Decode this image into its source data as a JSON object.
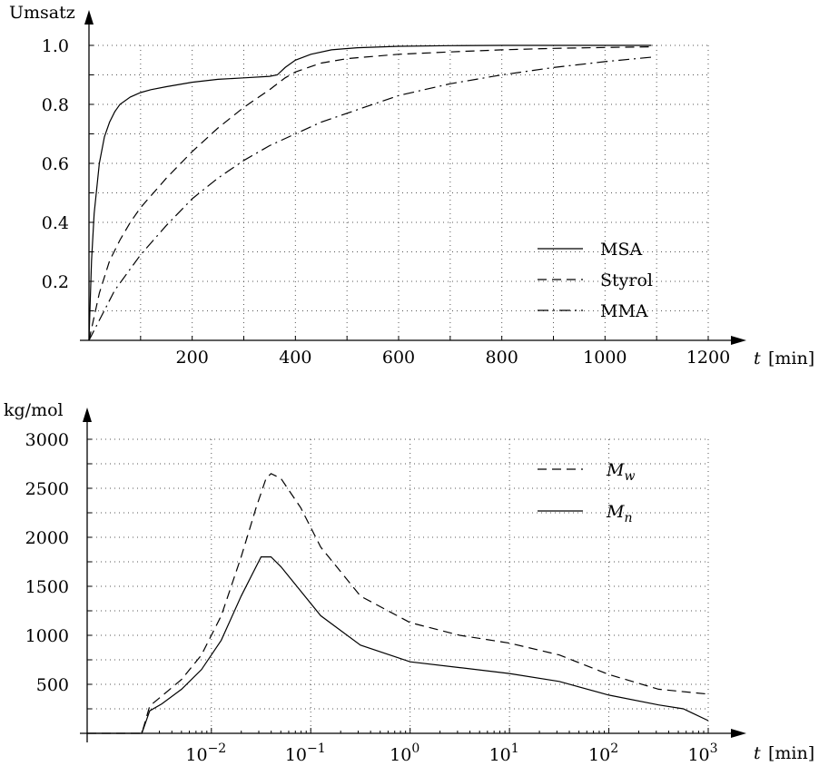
{
  "chart_data": [
    {
      "type": "line",
      "ylabel": "Umsatz",
      "xlabel_symbol": "t",
      "xlabel_unit": "[min]",
      "xlim": [
        0,
        1200
      ],
      "ylim": [
        0,
        1.0
      ],
      "xticks": [
        200,
        400,
        600,
        800,
        1000,
        1200
      ],
      "xtick_labels": [
        "200",
        "400",
        "600",
        "800",
        "1000",
        "1200"
      ],
      "yticks": [
        0.2,
        0.4,
        0.6,
        0.8,
        1.0
      ],
      "ytick_labels": [
        "0.2",
        "0.4",
        "0.6",
        "0.8",
        "1.0"
      ],
      "grid": true,
      "legend_position": "lower-right",
      "series": [
        {
          "name": "MSA",
          "style": "solid",
          "x": [
            0,
            5,
            10,
            20,
            30,
            40,
            50,
            60,
            80,
            100,
            120,
            150,
            200,
            250,
            300,
            350,
            365,
            380,
            400,
            430,
            470,
            520,
            600,
            700,
            800,
            900,
            1000,
            1090
          ],
          "y": [
            0.0,
            0.27,
            0.43,
            0.6,
            0.69,
            0.74,
            0.775,
            0.8,
            0.825,
            0.84,
            0.85,
            0.86,
            0.875,
            0.885,
            0.89,
            0.895,
            0.9,
            0.925,
            0.95,
            0.97,
            0.985,
            0.992,
            0.997,
            0.999,
            1.0,
            1.0,
            1.0,
            1.0
          ]
        },
        {
          "name": "Styrol",
          "style": "dashed",
          "x": [
            0,
            20,
            40,
            60,
            80,
            100,
            150,
            200,
            250,
            300,
            350,
            380,
            400,
            450,
            500,
            600,
            700,
            800,
            900,
            1000,
            1090
          ],
          "y": [
            0.0,
            0.16,
            0.27,
            0.34,
            0.4,
            0.45,
            0.55,
            0.64,
            0.72,
            0.79,
            0.85,
            0.89,
            0.91,
            0.94,
            0.955,
            0.97,
            0.978,
            0.985,
            0.99,
            0.993,
            0.995
          ]
        },
        {
          "name": "MMA",
          "style": "dashdot",
          "x": [
            0,
            50,
            100,
            150,
            200,
            250,
            300,
            350,
            400,
            450,
            500,
            600,
            700,
            800,
            900,
            1000,
            1090
          ],
          "y": [
            0.0,
            0.17,
            0.29,
            0.39,
            0.48,
            0.55,
            0.61,
            0.66,
            0.7,
            0.74,
            0.77,
            0.83,
            0.87,
            0.9,
            0.925,
            0.945,
            0.96
          ]
        }
      ]
    },
    {
      "type": "line",
      "ylabel": "kg/mol",
      "xlabel_symbol": "t",
      "xlabel_unit": "[min]",
      "xscale": "log",
      "xlim_log10": [
        -3.25,
        3.0
      ],
      "ylim": [
        0,
        3000
      ],
      "xtick_exponents": [
        -2,
        -1,
        0,
        1,
        2,
        3
      ],
      "xtick_base": "10",
      "xtick_labels": [
        "−2",
        "−1",
        "0",
        "1",
        "2",
        "3"
      ],
      "yticks": [
        500,
        1000,
        1500,
        2000,
        2500,
        3000
      ],
      "ytick_labels": [
        "500",
        "1000",
        "1500",
        "2000",
        "2500",
        "3000"
      ],
      "grid": true,
      "legend_position": "top-right",
      "series": [
        {
          "name": "M",
          "subscript": "w",
          "style": "dashed",
          "log10_x": [
            -3.25,
            -2.7,
            -2.62,
            -2.5,
            -2.3,
            -2.1,
            -1.9,
            -1.7,
            -1.55,
            -1.45,
            -1.4,
            -1.3,
            -1.1,
            -0.9,
            -0.5,
            0,
            0.5,
            1,
            1.5,
            2,
            2.5,
            3
          ],
          "y": [
            0,
            0,
            280,
            380,
            550,
            800,
            1200,
            1800,
            2300,
            2600,
            2650,
            2600,
            2300,
            1900,
            1400,
            1130,
            1000,
            920,
            800,
            600,
            450,
            400
          ]
        },
        {
          "name": "M",
          "subscript": "n",
          "style": "solid",
          "log10_x": [
            -3.25,
            -2.7,
            -2.62,
            -2.5,
            -2.3,
            -2.1,
            -1.9,
            -1.7,
            -1.5,
            -1.4,
            -1.3,
            -1.1,
            -0.9,
            -0.5,
            0,
            0.5,
            1,
            1.5,
            2,
            2.5,
            2.75,
            3
          ],
          "y": [
            0,
            0,
            230,
            300,
            450,
            650,
            950,
            1400,
            1800,
            1800,
            1700,
            1450,
            1200,
            900,
            730,
            670,
            610,
            530,
            390,
            290,
            250,
            130
          ]
        }
      ]
    }
  ]
}
